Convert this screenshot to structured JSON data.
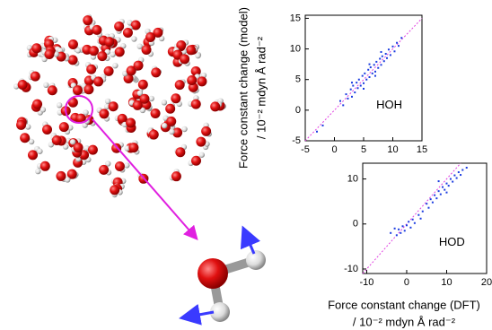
{
  "chart_data": [
    {
      "type": "scatter",
      "annotation": "HOH",
      "color": "#1a3be0",
      "diagonal": true,
      "y_label": [
        "Force constant change (model)",
        "/ 10⁻² mdyn Å rad⁻²"
      ],
      "xlim": [
        -5,
        15
      ],
      "ylim": [
        -5,
        15.5
      ],
      "xticks": [
        -5,
        0,
        5,
        10,
        15
      ],
      "yticks": [
        -5,
        0,
        5,
        10,
        15
      ],
      "x": [
        1,
        1.5,
        2,
        2.3,
        2.8,
        3,
        3.2,
        3.5,
        3.8,
        4,
        4.2,
        4.5,
        4.8,
        5,
        5.2,
        5.5,
        5.8,
        6,
        6.2,
        6.5,
        6.8,
        7,
        7.2,
        7.5,
        7.8,
        8,
        8.2,
        8.5,
        8.8,
        9,
        9.3,
        9.6,
        10,
        10.3,
        10.7,
        11,
        11.5,
        -2,
        -3,
        3,
        6,
        8,
        5,
        7
      ],
      "values": [
        1.5,
        0.8,
        2.6,
        1.9,
        3.4,
        2.2,
        4,
        2.9,
        4.5,
        3.6,
        5,
        4,
        5.6,
        4.4,
        6,
        5,
        6.6,
        5.4,
        7,
        6,
        7.4,
        6.3,
        7.9,
        6.9,
        8.4,
        7.4,
        8.8,
        8,
        9.2,
        8.5,
        9.9,
        9,
        10.4,
        9.6,
        11,
        10.5,
        11.8,
        -2.5,
        -3.5,
        4.5,
        7.5,
        9.5,
        3.5,
        5.6
      ]
    },
    {
      "type": "scatter",
      "annotation": "HOD",
      "color": "#1a3be0",
      "diagonal": true,
      "x_label": [
        "Force constant change (DFT)",
        "/ 10⁻² mdyn Å rad⁻²"
      ],
      "xlim": [
        -11,
        20
      ],
      "ylim": [
        -11,
        13.5
      ],
      "xticks": [
        -10,
        0,
        10,
        20
      ],
      "yticks": [
        -10,
        0,
        10
      ],
      "x": [
        -4,
        -3,
        -2.5,
        -2,
        -1.5,
        -1,
        -0.5,
        0,
        0.5,
        1,
        1.5,
        2,
        3,
        4,
        5,
        5.5,
        6,
        6.5,
        7,
        7.5,
        8,
        8.5,
        9,
        9.5,
        10,
        10.5,
        11,
        11.5,
        12,
        12.5,
        13,
        13.5,
        14,
        15,
        3.5,
        8,
        10
      ],
      "values": [
        -2,
        -1,
        -2.5,
        -1.2,
        -2,
        -0.5,
        -1.5,
        -0.3,
        0.5,
        -0.8,
        1,
        0.2,
        2,
        2.8,
        4.5,
        3.6,
        5.5,
        4.8,
        6.4,
        5.7,
        7.3,
        6.6,
        8.2,
        7.6,
        9,
        8.5,
        10,
        9.4,
        10.8,
        10.2,
        11.5,
        10.9,
        12,
        12.5,
        1.2,
        9.5,
        7
      ]
    }
  ]
}
